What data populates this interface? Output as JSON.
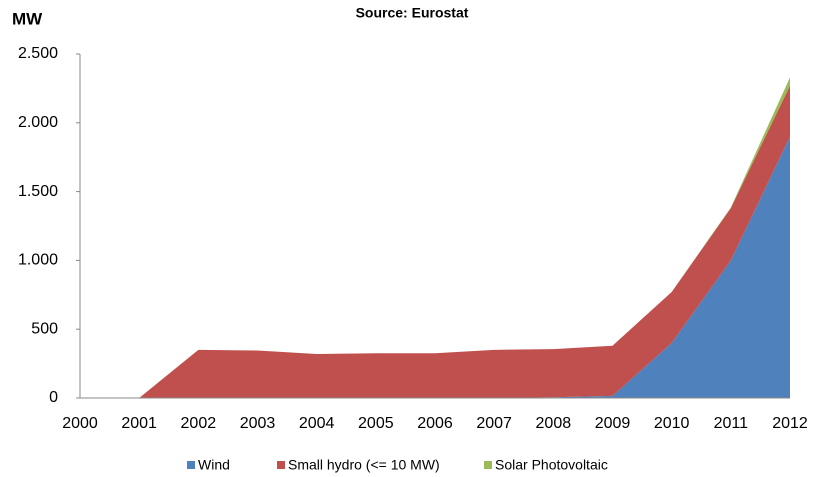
{
  "chart_data": {
    "type": "stacked_area",
    "title": "Source: Eurostat",
    "y_label": "MW",
    "categories": [
      "2000",
      "2001",
      "2002",
      "2003",
      "2004",
      "2005",
      "2006",
      "2007",
      "2008",
      "2009",
      "2010",
      "2011",
      "2012"
    ],
    "series": [
      {
        "name": "Wind",
        "color": "#4f81bd",
        "values": [
          0,
          0,
          0,
          0,
          0,
          0,
          0,
          0,
          5,
          15,
          400,
          1000,
          1900
        ]
      },
      {
        "name": "Small hydro (<= 10 MW)",
        "color": "#c0504d",
        "values": [
          0,
          0,
          350,
          345,
          320,
          325,
          325,
          350,
          350,
          365,
          370,
          380,
          370
        ]
      },
      {
        "name": "Solar Photovoltaic",
        "color": "#9bbb59",
        "values": [
          0,
          0,
          0,
          0,
          0,
          0,
          0,
          0,
          0,
          0,
          0,
          5,
          60
        ]
      }
    ],
    "ylim": [
      0,
      2500
    ],
    "yticks": [
      0,
      500,
      {
        "value": 1000,
        "label": "1.000"
      },
      {
        "value": 1500,
        "label": "1.500"
      },
      {
        "value": 2000,
        "label": "2.000"
      },
      {
        "value": 2500,
        "label": "2.500"
      }
    ],
    "legend": "bottom",
    "grid": false
  }
}
